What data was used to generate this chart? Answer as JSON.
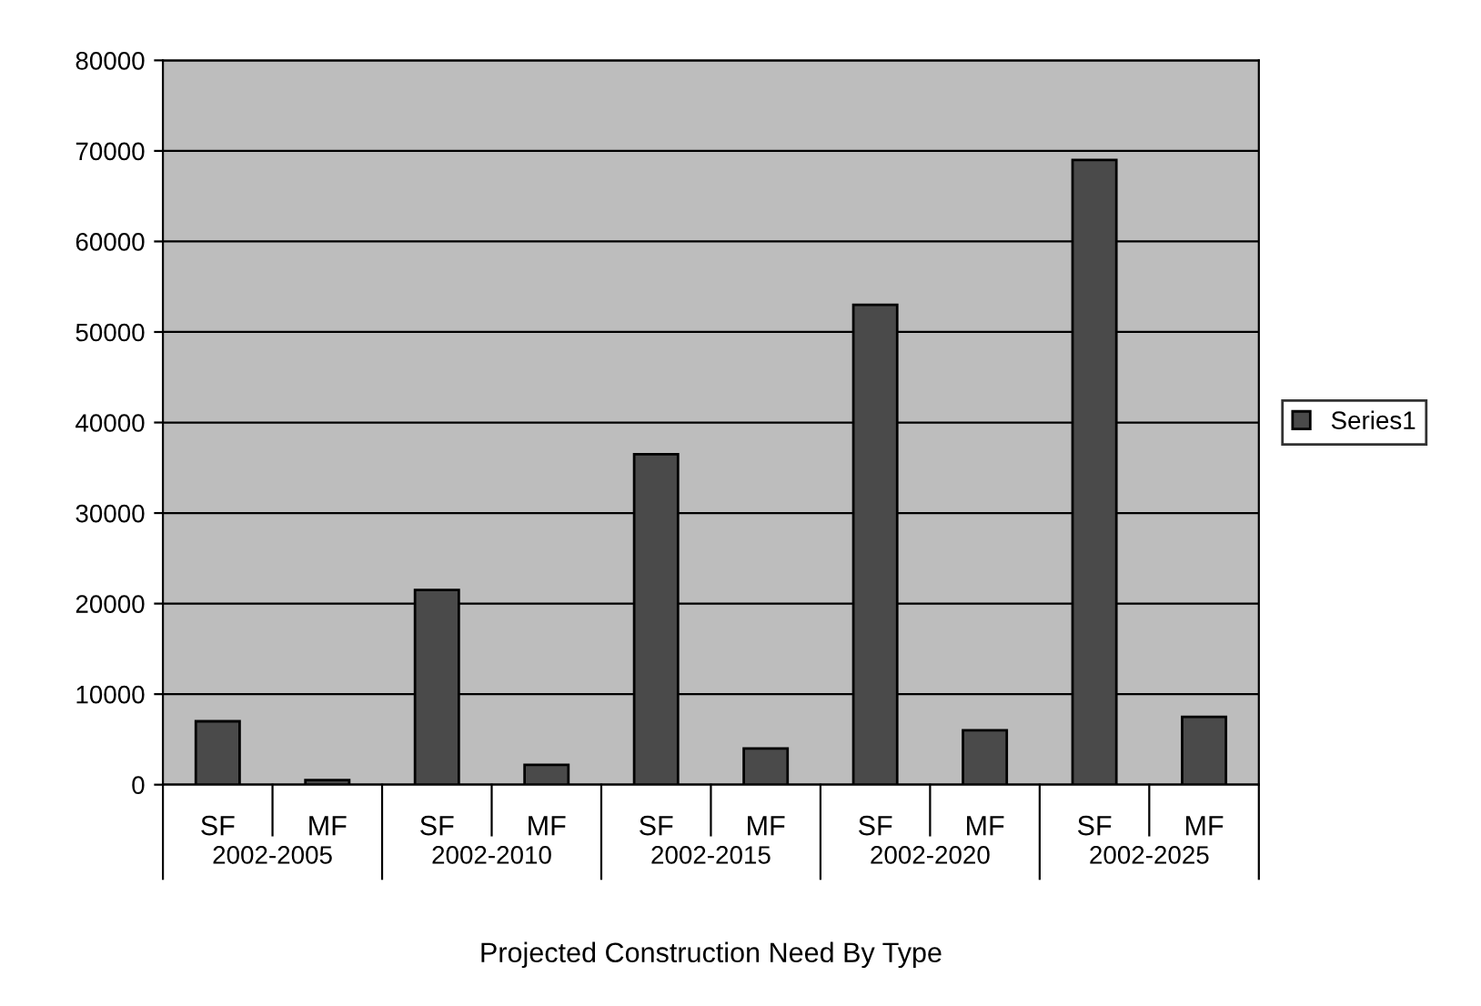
{
  "chart_data": {
    "type": "bar",
    "xlabel": "Projected Construction Need By Type",
    "categories": [
      "SF",
      "MF",
      "SF",
      "MF",
      "SF",
      "MF",
      "SF",
      "MF",
      "SF",
      "MF"
    ],
    "annotations": [
      "2002-2005",
      "2002-2010",
      "2002-2015",
      "2002-2020",
      "2002-2025"
    ],
    "series": [
      {
        "name": "Series1",
        "color": "#4a4a4a",
        "values": [
          7000,
          500,
          21500,
          2200,
          36500,
          4000,
          53000,
          6000,
          69000,
          7500
        ]
      }
    ],
    "ylim": [
      0,
      80000
    ],
    "yticks": [
      0,
      10000,
      20000,
      30000,
      40000,
      50000,
      60000,
      70000,
      80000
    ],
    "grid": "y",
    "legend": "right"
  }
}
